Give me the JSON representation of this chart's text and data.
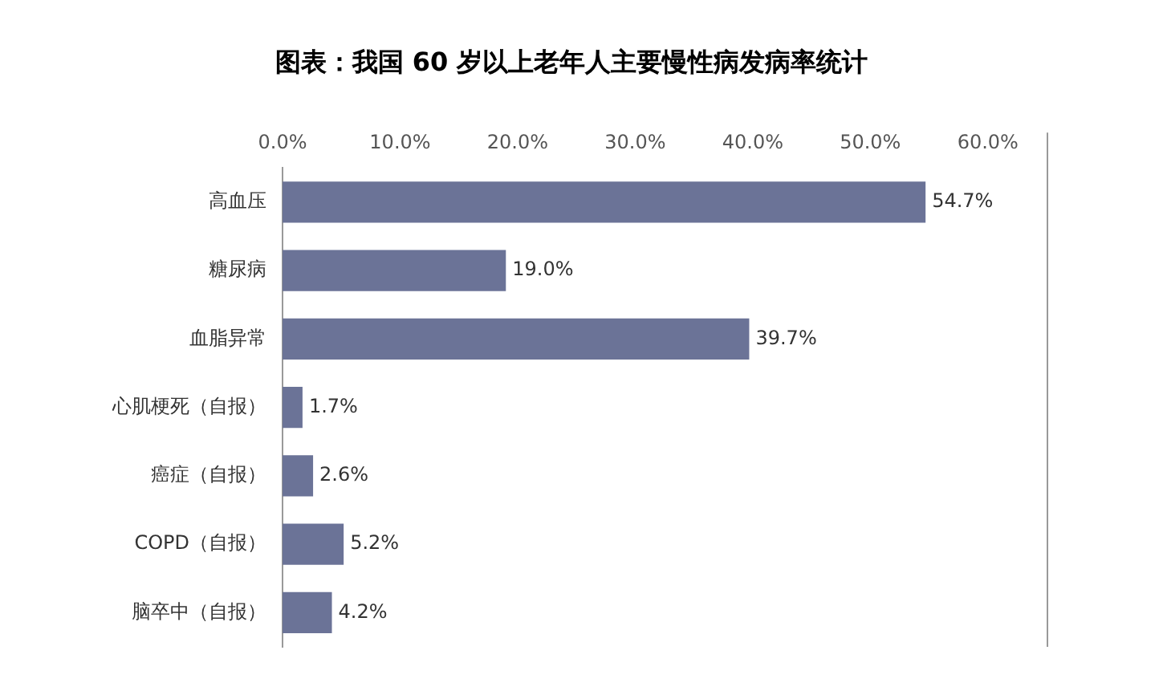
{
  "chart_data": {
    "type": "bar",
    "orientation": "horizontal",
    "title": "图表：我国 60 岁以上老年人主要慢性病发病率统计",
    "categories": [
      "高血压",
      "糖尿病",
      "血脂异常",
      "心肌梗死（自报）",
      "癌症（自报）",
      "COPD（自报）",
      "脑卒中（自报）"
    ],
    "values": [
      54.7,
      19.0,
      39.7,
      1.7,
      2.6,
      5.2,
      4.2
    ],
    "value_labels": [
      "54.7%",
      "19.0%",
      "39.7%",
      "1.7%",
      "2.6%",
      "5.2%",
      "4.2%"
    ],
    "color": "#6b7397",
    "xlim": [
      0,
      65
    ],
    "xticks": [
      {
        "value": 0,
        "label": "0.0%"
      },
      {
        "value": 10,
        "label": "10.0%"
      },
      {
        "value": 20,
        "label": "20.0%"
      },
      {
        "value": 30,
        "label": "30.0%"
      },
      {
        "value": 40,
        "label": "40.0%"
      },
      {
        "value": 50,
        "label": "50.0%"
      },
      {
        "value": 60,
        "label": "60.0%"
      }
    ],
    "grid": false,
    "legend": false
  }
}
